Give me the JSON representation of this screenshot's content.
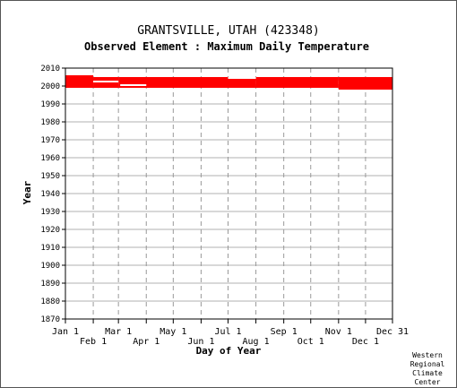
{
  "chart_data": {
    "type": "bar",
    "title": "GRANTSVILLE, UTAH   (423348)",
    "subtitle": "Observed Element : Maximum Daily Temperature",
    "xlabel": "Day of Year",
    "ylabel": "Year",
    "ylim": [
      1870,
      2010
    ],
    "yticks": [
      1870,
      1880,
      1890,
      1900,
      1910,
      1920,
      1930,
      1940,
      1950,
      1960,
      1970,
      1980,
      1990,
      2000,
      2010
    ],
    "xlim": [
      1,
      365
    ],
    "xticks_top_row": [
      {
        "label": "Jan 1",
        "day": 1
      },
      {
        "label": "Mar 1",
        "day": 60
      },
      {
        "label": "May 1",
        "day": 121
      },
      {
        "label": "Jul 1",
        "day": 182
      },
      {
        "label": "Sep 1",
        "day": 244
      },
      {
        "label": "Nov 1",
        "day": 305
      },
      {
        "label": "Dec 31",
        "day": 365
      }
    ],
    "xticks_bottom_row": [
      {
        "label": "Feb 1",
        "day": 32
      },
      {
        "label": "Apr 1",
        "day": 91
      },
      {
        "label": "Jun 1",
        "day": 152
      },
      {
        "label": "Aug 1",
        "day": 213
      },
      {
        "label": "Oct 1",
        "day": 274
      },
      {
        "label": "Dec 1",
        "day": 335
      }
    ],
    "grid": true,
    "data_color": "#ff0000",
    "observed_periods": [
      {
        "day_start": 1,
        "day_end": 31,
        "year_start": 1999,
        "year_end": 2006
      },
      {
        "day_start": 32,
        "day_end": 59,
        "year_start": 1999,
        "year_end": 2005
      },
      {
        "day_start": 60,
        "day_end": 181,
        "year_start": 1999,
        "year_end": 2005
      },
      {
        "day_start": 182,
        "day_end": 212,
        "year_start": 1999,
        "year_end": 2005
      },
      {
        "day_start": 213,
        "day_end": 304,
        "year_start": 1999,
        "year_end": 2005
      },
      {
        "day_start": 305,
        "day_end": 365,
        "year_start": 1998,
        "year_end": 2005
      }
    ],
    "missing_marks": [
      {
        "day_start": 32,
        "day_end": 59,
        "year": 2002.5
      },
      {
        "day_start": 62,
        "day_end": 90,
        "year": 2000.5
      },
      {
        "day_start": 182,
        "day_end": 212,
        "year": 2004.5
      }
    ]
  },
  "credit": [
    "Western",
    "Regional",
    "Climate",
    "Center"
  ]
}
